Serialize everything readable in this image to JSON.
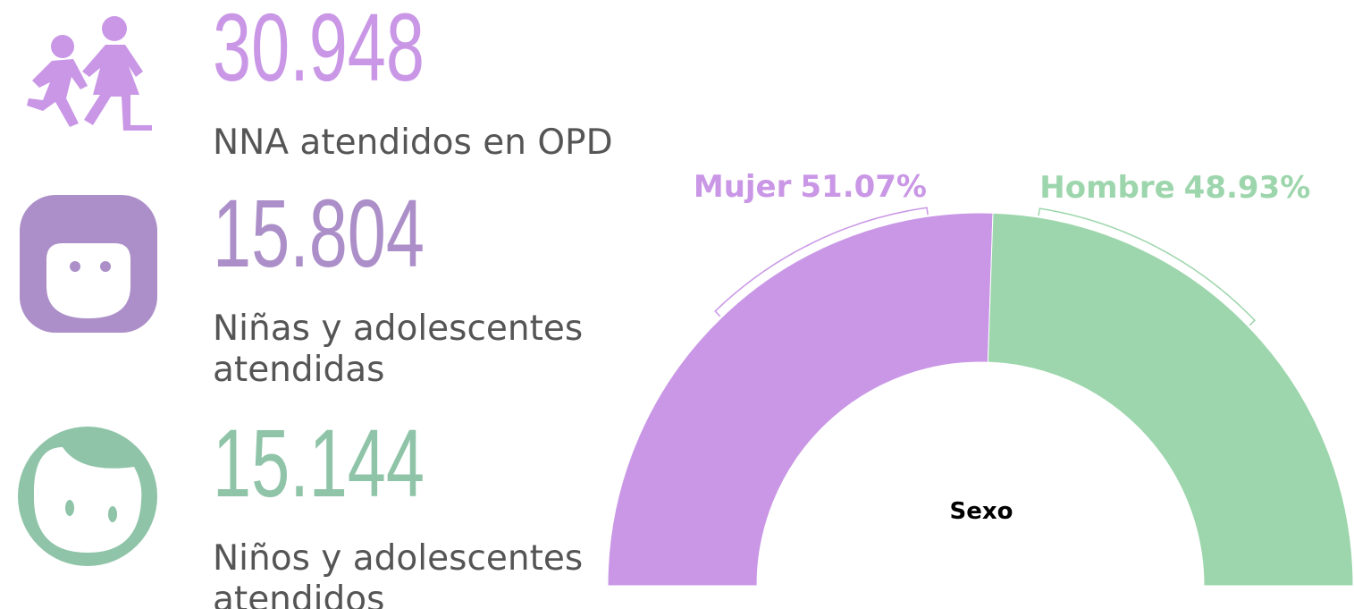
{
  "stats": [
    {
      "value": "30.948",
      "label": [
        "NNA atendidos en OPD"
      ],
      "color": "#c997e6"
    },
    {
      "value": "15.804",
      "label": [
        "Niñas y adolescentes",
        "atendidas"
      ],
      "color": "#ac8fc8"
    },
    {
      "value": "15.144",
      "label": [
        "Niños y adolescentes",
        "atendidos"
      ],
      "color": "#8fc4a8"
    }
  ],
  "chart_data": {
    "type": "semi-donut",
    "title": "Sexo",
    "categories": [
      "Mujer",
      "Hombre"
    ],
    "values": [
      51.07,
      48.93
    ],
    "value_labels": [
      "51.07%",
      "48.93%"
    ],
    "colors": [
      "#c997e6",
      "#9dd6ac"
    ]
  }
}
